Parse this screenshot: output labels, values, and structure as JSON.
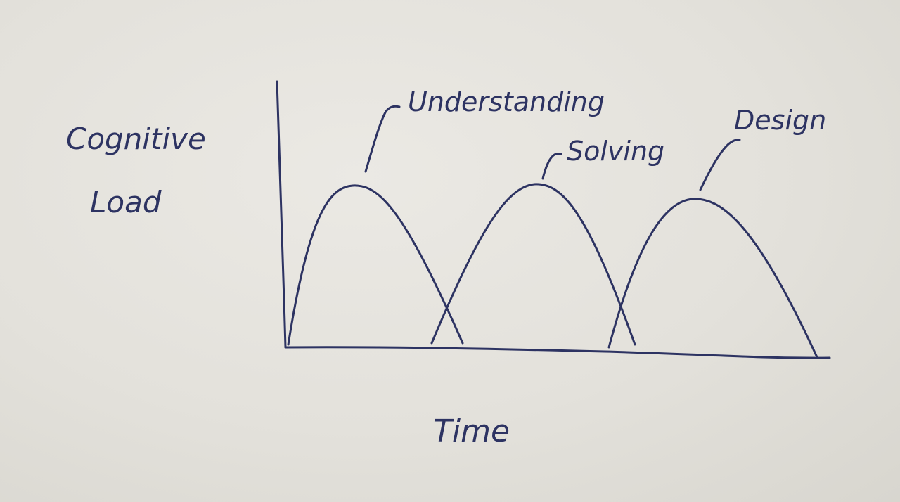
{
  "colors": {
    "paper": "#e4e2dc",
    "ink": "#2d3362"
  },
  "diagram": {
    "y_axis_label": [
      "Cognitive",
      "Load"
    ],
    "x_axis_label": "Time",
    "curves": [
      {
        "label": "Understanding"
      },
      {
        "label": "Solving"
      },
      {
        "label": "Design"
      }
    ]
  }
}
